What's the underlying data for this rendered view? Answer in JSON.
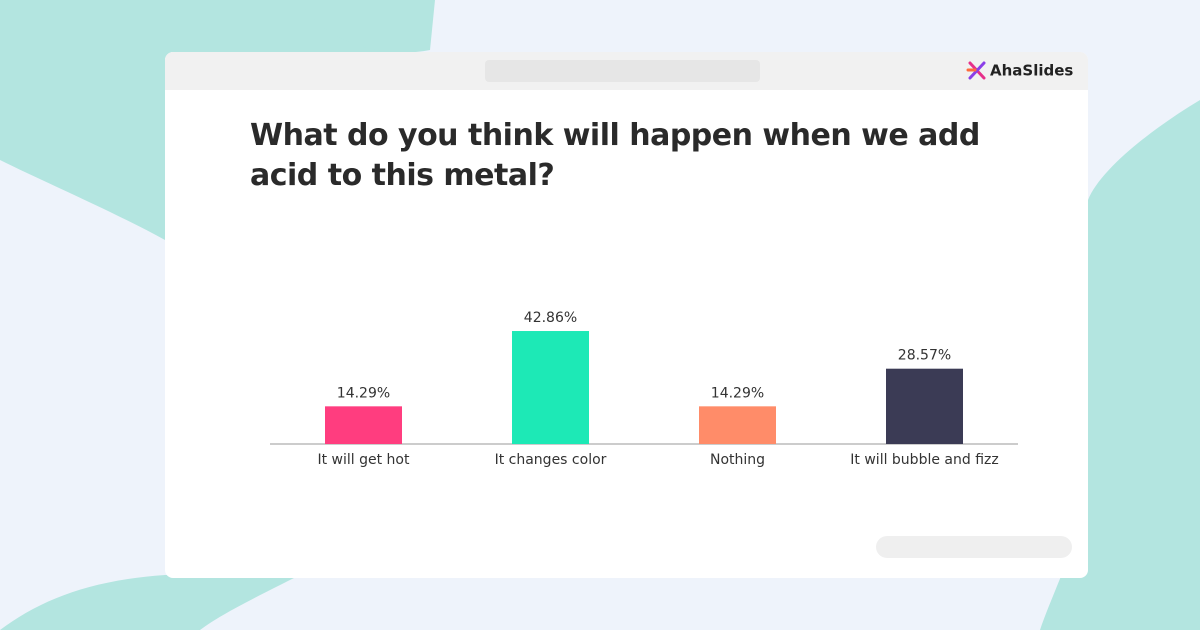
{
  "brand": "AhaSlides",
  "chart_data": {
    "type": "bar",
    "title": "What do you think will happen when we add acid to this metal?",
    "categories": [
      "It will get hot",
      "It changes color",
      "Nothing",
      "It will bubble and fizz"
    ],
    "values": [
      14.29,
      42.86,
      14.29,
      28.57
    ],
    "value_labels": [
      "14.29%",
      "42.86%",
      "14.29%",
      "28.57%"
    ],
    "colors": [
      "#ff3d7f",
      "#1de9b6",
      "#ff8c69",
      "#3b3b55"
    ]
  }
}
